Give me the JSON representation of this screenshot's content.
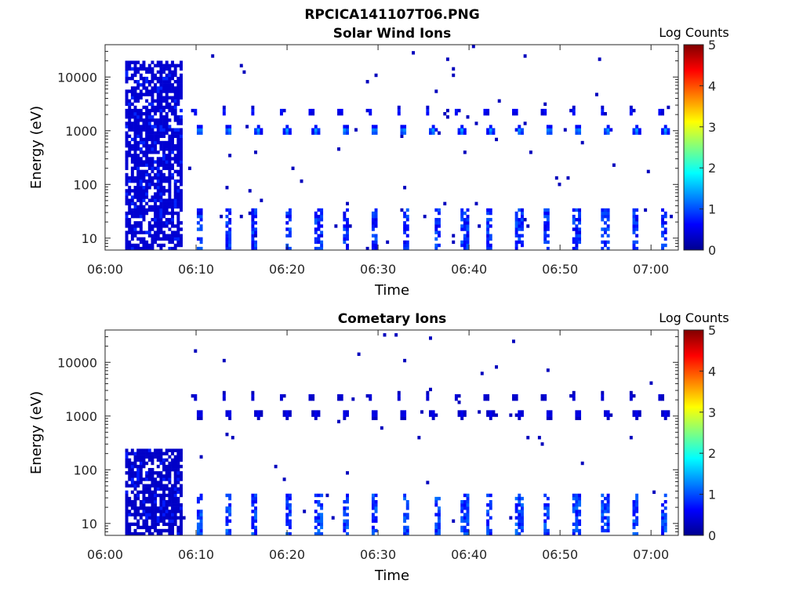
{
  "figure_title": "RPCICA141107T06.PNG",
  "chart_data": [
    {
      "type": "heatmap",
      "title": "Solar Wind Ions",
      "xlabel": "Time",
      "ylabel": "Energy (eV)",
      "x_ticks": [
        "06:00",
        "06:10",
        "06:20",
        "06:30",
        "06:40",
        "06:50",
        "07:00"
      ],
      "x_tick_minutes": [
        0,
        10,
        20,
        30,
        40,
        50,
        60
      ],
      "x_range_minutes": [
        0,
        63
      ],
      "y_scale": "log",
      "y_ticks": [
        "10",
        "100",
        "1000",
        "10000"
      ],
      "y_tick_values": [
        10,
        100,
        1000,
        10000
      ],
      "y_range": [
        6,
        40000
      ],
      "colorbar": {
        "label": "Log Counts",
        "min": 0,
        "max": 5,
        "ticks": [
          "0",
          "1",
          "2",
          "3",
          "4",
          "5"
        ]
      },
      "features": {
        "early_block": {
          "t_range": [
            2.2,
            8.5
          ],
          "e_range": [
            6,
            20000
          ],
          "level": 0.4
        },
        "periodic_peaks": {
          "start": 10.4,
          "period": 3.2,
          "count": 17,
          "main_energy": 1000,
          "main_level": 1.3,
          "upper_energy": 2300,
          "upper_level": 0.6
        },
        "low_energy_bursts": {
          "times": [
            10.3,
            13.5,
            16.5,
            20.2,
            23.5,
            26.5,
            29.5,
            33.0,
            36.5,
            39.5,
            42.3,
            45.5,
            48.5,
            51.8,
            55.0,
            58.2,
            61.5
          ],
          "e_max": 35,
          "level": 0.5
        },
        "sparse_noise": {
          "density": 0.006,
          "level": 0.3
        }
      }
    },
    {
      "type": "heatmap",
      "title": "Cometary Ions",
      "xlabel": "Time",
      "ylabel": "Energy (eV)",
      "x_ticks": [
        "06:00",
        "06:10",
        "06:20",
        "06:30",
        "06:40",
        "06:50",
        "07:00"
      ],
      "x_tick_minutes": [
        0,
        10,
        20,
        30,
        40,
        50,
        60
      ],
      "x_range_minutes": [
        0,
        63
      ],
      "y_scale": "log",
      "y_ticks": [
        "10",
        "100",
        "1000",
        "10000"
      ],
      "y_tick_values": [
        10,
        100,
        1000,
        10000
      ],
      "y_range": [
        6,
        40000
      ],
      "colorbar": {
        "label": "Log Counts",
        "min": 0,
        "max": 5,
        "ticks": [
          "0",
          "1",
          "2",
          "3",
          "4",
          "5"
        ]
      },
      "features": {
        "early_block": {
          "t_range": [
            2.2,
            8.5
          ],
          "e_range": [
            6,
            250
          ],
          "level": 0.35
        },
        "periodic_peaks": {
          "start": 10.4,
          "period": 3.2,
          "count": 17,
          "main_energy": 1100,
          "main_level": 0.4,
          "upper_energy": 2300,
          "upper_level": 0.3
        },
        "low_energy_bursts": {
          "times": [
            10.3,
            13.5,
            16.5,
            20.2,
            23.5,
            26.5,
            29.5,
            33.0,
            36.5,
            39.5,
            42.3,
            45.5,
            48.5,
            51.8,
            55.0,
            58.2,
            61.5
          ],
          "e_max": 35,
          "level": 0.6
        },
        "sparse_noise": {
          "density": 0.004,
          "level": 0.3
        }
      }
    }
  ]
}
